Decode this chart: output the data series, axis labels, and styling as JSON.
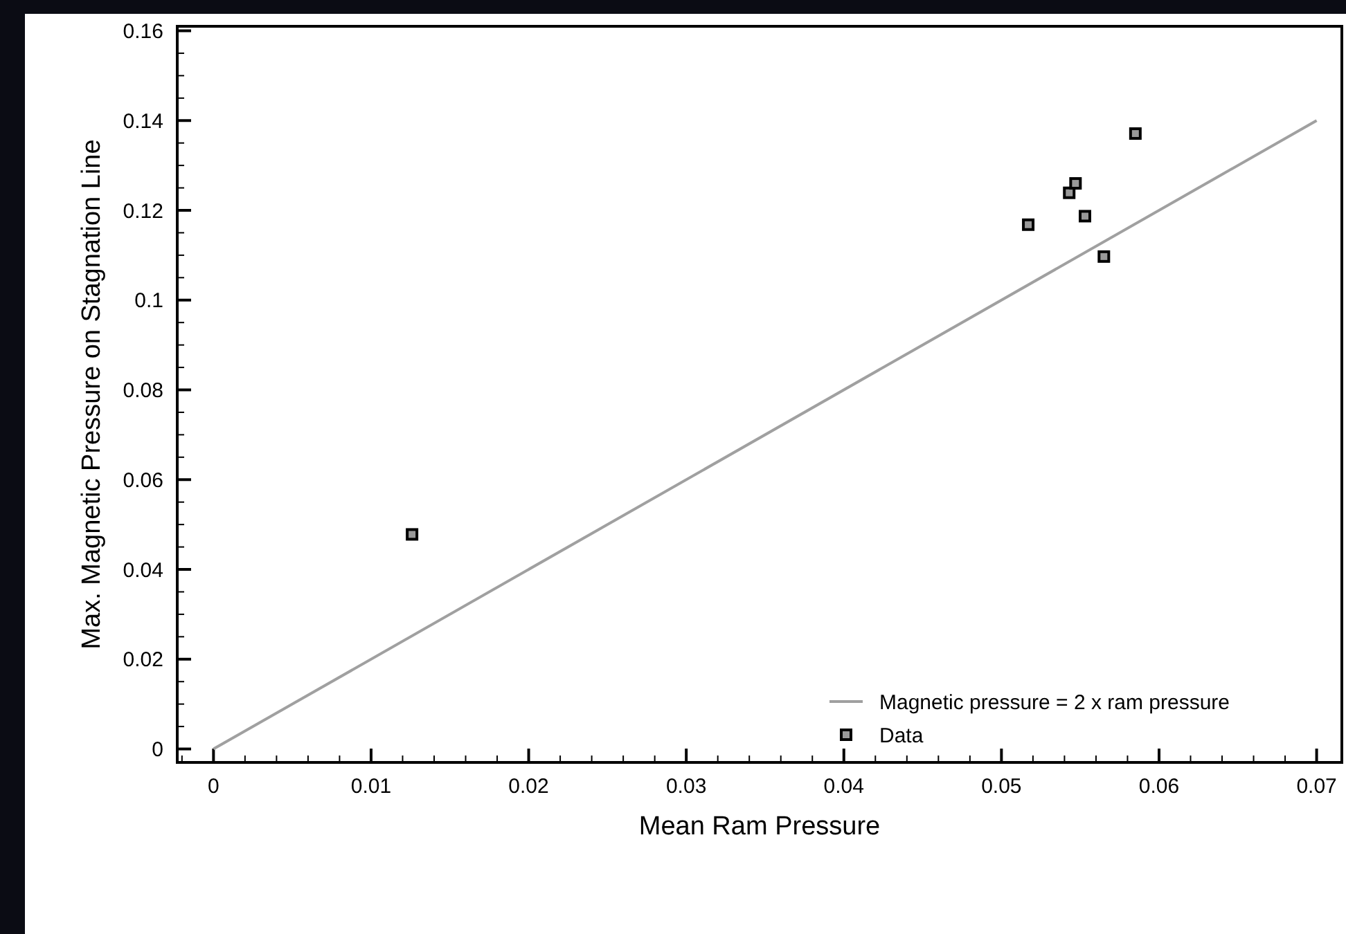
{
  "chart_data": {
    "type": "scatter",
    "xlabel": "Mean Ram Pressure",
    "ylabel": "Max. Magnetic Pressure on Stagnation Line",
    "xlim": [
      -0.0023,
      0.0716
    ],
    "ylim": [
      -0.003,
      0.161
    ],
    "xticks": [
      {
        "value": -0.002,
        "label": null
      },
      0,
      {
        "value": 0.002,
        "label": null
      },
      {
        "value": 0.004,
        "label": null
      },
      {
        "value": 0.006,
        "label": null
      },
      {
        "value": 0.008,
        "label": null
      },
      0.01,
      {
        "value": 0.012,
        "label": null
      },
      {
        "value": 0.014,
        "label": null
      },
      {
        "value": 0.016,
        "label": null
      },
      {
        "value": 0.018,
        "label": null
      },
      0.02,
      {
        "value": 0.022,
        "label": null
      },
      {
        "value": 0.024,
        "label": null
      },
      {
        "value": 0.026,
        "label": null
      },
      {
        "value": 0.028,
        "label": null
      },
      0.03,
      {
        "value": 0.032,
        "label": null
      },
      {
        "value": 0.034,
        "label": null
      },
      {
        "value": 0.036,
        "label": null
      },
      {
        "value": 0.038,
        "label": null
      },
      0.04,
      {
        "value": 0.042,
        "label": null
      },
      {
        "value": 0.044,
        "label": null
      },
      {
        "value": 0.046,
        "label": null
      },
      {
        "value": 0.048,
        "label": null
      },
      0.05,
      {
        "value": 0.052,
        "label": null
      },
      {
        "value": 0.054,
        "label": null
      },
      {
        "value": 0.056,
        "label": null
      },
      {
        "value": 0.058,
        "label": null
      },
      0.06,
      {
        "value": 0.062,
        "label": null
      },
      {
        "value": 0.064,
        "label": null
      },
      {
        "value": 0.066,
        "label": null
      },
      {
        "value": 0.068,
        "label": null
      },
      0.07
    ],
    "yticks": [
      0,
      {
        "value": 0.005,
        "label": null
      },
      {
        "value": 0.01,
        "label": null
      },
      {
        "value": 0.015,
        "label": null
      },
      0.02,
      {
        "value": 0.025,
        "label": null
      },
      {
        "value": 0.03,
        "label": null
      },
      {
        "value": 0.035,
        "label": null
      },
      0.04,
      {
        "value": 0.045,
        "label": null
      },
      {
        "value": 0.05,
        "label": null
      },
      {
        "value": 0.055,
        "label": null
      },
      0.06,
      {
        "value": 0.065,
        "label": null
      },
      {
        "value": 0.07,
        "label": null
      },
      {
        "value": 0.075,
        "label": null
      },
      0.08,
      {
        "value": 0.085,
        "label": null
      },
      {
        "value": 0.09,
        "label": null
      },
      {
        "value": 0.095,
        "label": null
      },
      0.1,
      {
        "value": 0.105,
        "label": null
      },
      {
        "value": 0.11,
        "label": null
      },
      {
        "value": 0.115,
        "label": null
      },
      0.12,
      {
        "value": 0.125,
        "label": null
      },
      {
        "value": 0.13,
        "label": null
      },
      {
        "value": 0.135,
        "label": null
      },
      0.14,
      {
        "value": 0.145,
        "label": null
      },
      {
        "value": 0.15,
        "label": null
      },
      {
        "value": 0.155,
        "label": null
      },
      0.16
    ],
    "grid": false,
    "legend": "bottom right",
    "series": [
      {
        "name": "Magnetic pressure = 2 x ram pressure",
        "type": "line",
        "color": "#a0a0a0",
        "marker": "none",
        "line_style": "solid",
        "x": [
          0,
          0.07
        ],
        "values": [
          0,
          0.14
        ]
      },
      {
        "name": "Data",
        "color": "#000000",
        "marker": "square",
        "x": [
          0.0126,
          0.0517,
          0.0543,
          0.0547,
          0.0553,
          0.0565,
          0.0585
        ],
        "values": [
          0.0478,
          0.1168,
          0.1239,
          0.126,
          0.1187,
          0.1097,
          0.1371
        ]
      }
    ]
  }
}
